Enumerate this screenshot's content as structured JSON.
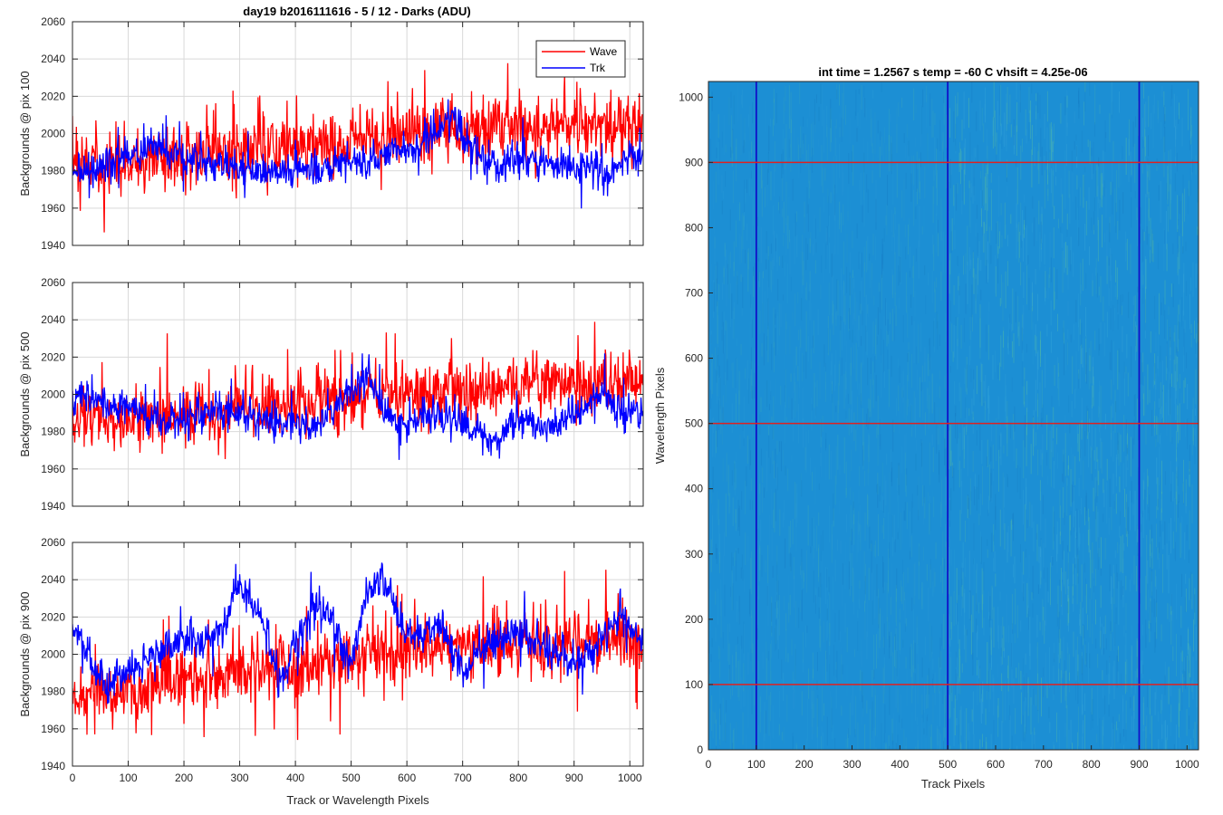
{
  "figure": {
    "left_title": "day19 b2016111616 - 5 / 12 - Darks (ADU)",
    "right_title": "int time = 1.2567 s    temp = -60 C    vhsift = 4.25e-06"
  },
  "colors": {
    "wave": "#ff0000",
    "trk": "#0000ff",
    "image_base": "#1c8fd4",
    "image_highlight": "#5fc49a",
    "image_column_line": "#1010c8",
    "image_row_line": "#e02020"
  },
  "chart_data": [
    {
      "type": "line",
      "ylabel": "Backgrounds @ pix 100",
      "xlabel": "",
      "xlim": [
        0,
        1024
      ],
      "ylim": [
        1940,
        2060
      ],
      "xticks": [
        0,
        100,
        200,
        300,
        400,
        500,
        600,
        700,
        800,
        900,
        1000
      ],
      "yticks": [
        1940,
        1960,
        1980,
        2000,
        2020,
        2040,
        2060
      ],
      "grid": true,
      "legend": {
        "position": "top-right",
        "entries": [
          "Wave",
          "Trk"
        ]
      },
      "series": [
        {
          "name": "Wave",
          "color": "#ff0000",
          "n_points": 1024,
          "x_step": 1,
          "baseline": [
            [
              0,
              1982
            ],
            [
              100,
              1984
            ],
            [
              200,
              1988
            ],
            [
              300,
              1990
            ],
            [
              400,
              1992
            ],
            [
              500,
              1996
            ],
            [
              600,
              2000
            ],
            [
              700,
              2002
            ],
            [
              800,
              2004
            ],
            [
              900,
              2004
            ],
            [
              1024,
              2004
            ]
          ],
          "noise_std": 10,
          "observed_range": [
            1947,
            2045
          ]
        },
        {
          "name": "Trk",
          "color": "#0000ff",
          "n_points": 1024,
          "x_step": 1,
          "baseline": [
            [
              0,
              1980
            ],
            [
              50,
              1982
            ],
            [
              150,
              1994
            ],
            [
              200,
              1988
            ],
            [
              250,
              1982
            ],
            [
              300,
              1982
            ],
            [
              350,
              1980
            ],
            [
              400,
              1980
            ],
            [
              450,
              1980
            ],
            [
              500,
              1985
            ],
            [
              560,
              1990
            ],
            [
              620,
              1992
            ],
            [
              650,
              2000
            ],
            [
              680,
              2008
            ],
            [
              720,
              1992
            ],
            [
              760,
              1982
            ],
            [
              800,
              1988
            ],
            [
              850,
              1982
            ],
            [
              900,
              1984
            ],
            [
              960,
              1978
            ],
            [
              1000,
              1988
            ],
            [
              1024,
              1988
            ]
          ],
          "noise_std": 6,
          "observed_range": [
            1956,
            2020
          ]
        }
      ]
    },
    {
      "type": "line",
      "ylabel": "Backgrounds @ pix 500",
      "xlabel": "",
      "xlim": [
        0,
        1024
      ],
      "ylim": [
        1940,
        2060
      ],
      "xticks": [
        0,
        100,
        200,
        300,
        400,
        500,
        600,
        700,
        800,
        900,
        1000
      ],
      "yticks": [
        1940,
        1960,
        1980,
        2000,
        2020,
        2040,
        2060
      ],
      "grid": true,
      "series": [
        {
          "name": "Wave",
          "color": "#ff0000",
          "n_points": 1024,
          "x_step": 1,
          "baseline": [
            [
              0,
              1984
            ],
            [
              100,
              1986
            ],
            [
              200,
              1988
            ],
            [
              300,
              1992
            ],
            [
              400,
              1996
            ],
            [
              500,
              1998
            ],
            [
              600,
              2000
            ],
            [
              700,
              2002
            ],
            [
              800,
              2004
            ],
            [
              900,
              2006
            ],
            [
              1024,
              2006
            ]
          ],
          "noise_std": 10,
          "observed_range": [
            1952,
            2059
          ]
        },
        {
          "name": "Trk",
          "color": "#0000ff",
          "n_points": 1024,
          "x_step": 1,
          "baseline": [
            [
              0,
              1998
            ],
            [
              50,
              1996
            ],
            [
              100,
              1994
            ],
            [
              150,
              1985
            ],
            [
              200,
              1986
            ],
            [
              250,
              1990
            ],
            [
              300,
              1992
            ],
            [
              350,
              1984
            ],
            [
              400,
              1986
            ],
            [
              450,
              1984
            ],
            [
              480,
              1998
            ],
            [
              530,
              2010
            ],
            [
              560,
              1990
            ],
            [
              600,
              1984
            ],
            [
              650,
              1990
            ],
            [
              700,
              1986
            ],
            [
              760,
              1974
            ],
            [
              800,
              1988
            ],
            [
              850,
              1982
            ],
            [
              900,
              1990
            ],
            [
              950,
              2000
            ],
            [
              1000,
              1990
            ],
            [
              1024,
              1990
            ]
          ],
          "noise_std": 6,
          "observed_range": [
            1960,
            2022
          ]
        }
      ]
    },
    {
      "type": "line",
      "ylabel": "Backgrounds @ pix 900",
      "xlabel": "Track or Wavelength Pixels",
      "xlim": [
        0,
        1024
      ],
      "ylim": [
        1940,
        2060
      ],
      "xticks": [
        0,
        100,
        200,
        300,
        400,
        500,
        600,
        700,
        800,
        900,
        1000
      ],
      "yticks": [
        1940,
        1960,
        1980,
        2000,
        2020,
        2040,
        2060
      ],
      "grid": true,
      "series": [
        {
          "name": "Wave",
          "color": "#ff0000",
          "n_points": 1024,
          "x_step": 1,
          "baseline": [
            [
              0,
              1976
            ],
            [
              100,
              1980
            ],
            [
              200,
              1988
            ],
            [
              300,
              1990
            ],
            [
              400,
              1994
            ],
            [
              500,
              1998
            ],
            [
              600,
              2002
            ],
            [
              700,
              2004
            ],
            [
              800,
              2006
            ],
            [
              900,
              2008
            ],
            [
              1024,
              2008
            ]
          ],
          "noise_std": 11,
          "observed_range": [
            1954,
            2058
          ]
        },
        {
          "name": "Trk",
          "color": "#0000ff",
          "n_points": 1024,
          "x_step": 1,
          "baseline": [
            [
              0,
              2016
            ],
            [
              30,
              1996
            ],
            [
              60,
              1982
            ],
            [
              100,
              1990
            ],
            [
              140,
              1998
            ],
            [
              200,
              2010
            ],
            [
              230,
              2005
            ],
            [
              260,
              2010
            ],
            [
              300,
              2038
            ],
            [
              340,
              2015
            ],
            [
              370,
              1985
            ],
            [
              400,
              2005
            ],
            [
              430,
              2028
            ],
            [
              460,
              2020
            ],
            [
              500,
              1995
            ],
            [
              530,
              2035
            ],
            [
              560,
              2040
            ],
            [
              590,
              2015
            ],
            [
              630,
              2008
            ],
            [
              660,
              2018
            ],
            [
              700,
              1992
            ],
            [
              730,
              2000
            ],
            [
              760,
              2006
            ],
            [
              800,
              2012
            ],
            [
              850,
              2004
            ],
            [
              900,
              1996
            ],
            [
              940,
              2002
            ],
            [
              980,
              2020
            ],
            [
              1024,
              2010
            ]
          ],
          "noise_std": 6,
          "observed_range": [
            1972,
            2058
          ]
        }
      ]
    },
    {
      "type": "heatmap",
      "xlabel": "Track Pixels",
      "ylabel": "Wavelength Pixels",
      "xlim": [
        0,
        1024
      ],
      "ylim": [
        0,
        1024
      ],
      "xticks": [
        0,
        100,
        200,
        300,
        400,
        500,
        600,
        700,
        800,
        900,
        1000
      ],
      "yticks": [
        0,
        100,
        200,
        300,
        400,
        500,
        600,
        700,
        800,
        900,
        1000
      ],
      "vertical_markers": [
        100,
        500,
        900
      ],
      "horizontal_markers": [
        100,
        500,
        900
      ],
      "brighter_region_from_x": 500
    }
  ]
}
